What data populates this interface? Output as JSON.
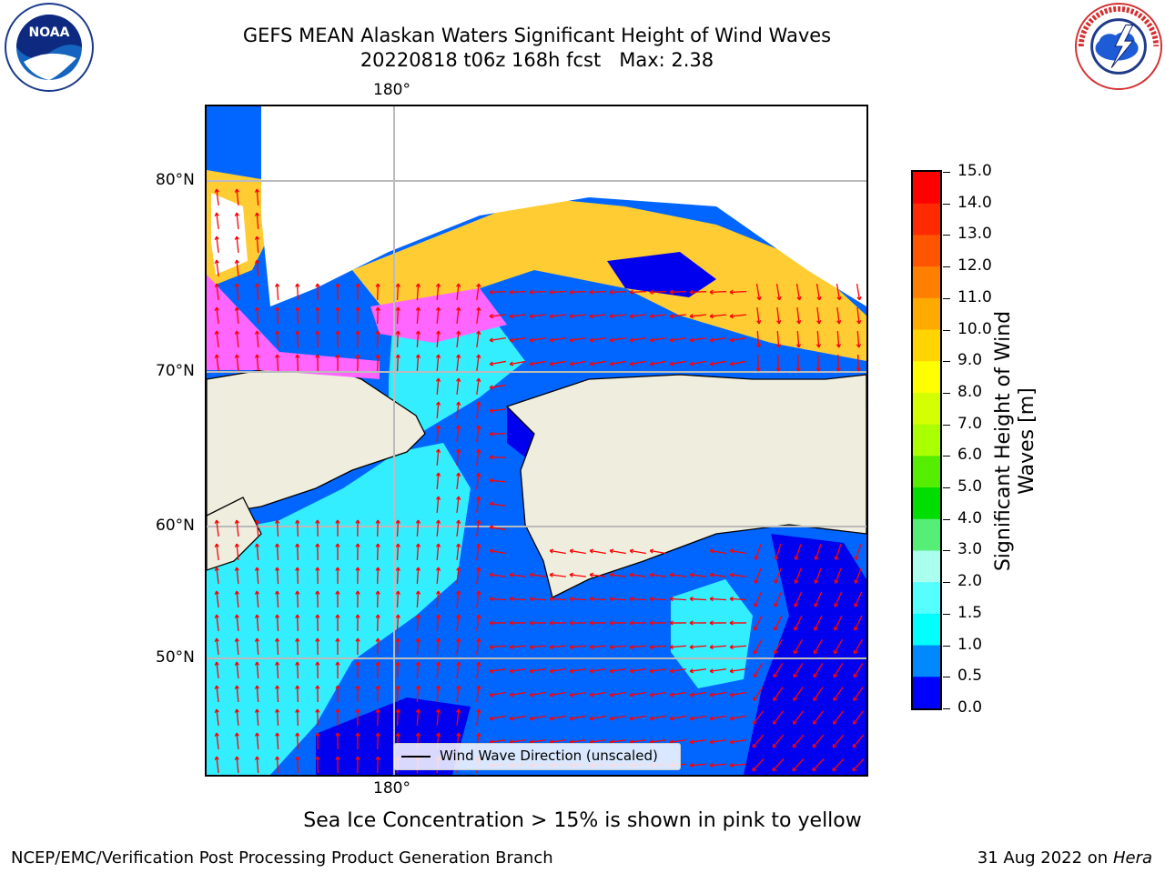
{
  "title": {
    "line1": "GEFS MEAN Alaskan Waters Significant Height of Wind Waves",
    "line2": "20220818 t06z 168h fcst   Max: 2.38"
  },
  "logos": {
    "left": {
      "icon": "noaa-logo",
      "text": "NOAA",
      "ring_text": "NATIONAL OCEANIC AND ATMOSPHERIC ADMINISTRATION · U.S. DEPARTMENT OF COMMERCE"
    },
    "right": {
      "icon": "nws-logo",
      "ring_text": "NATIONAL WEATHER SERVICE"
    }
  },
  "map": {
    "lon_label_top": "180°",
    "lon_label_bottom": "180°",
    "lat_labels": [
      "80°N",
      "70°N",
      "60°N",
      "50°N"
    ],
    "legend_label": "Wind Wave Direction (unscaled)",
    "colors": {
      "land": "#efedde",
      "sea_ice": [
        "#ff40ff",
        "#ffcc33"
      ],
      "arrow": "#ff0000",
      "grid": "#bbbbbb"
    }
  },
  "colorbar": {
    "title": "Significant Height of Wind Waves [m]",
    "ticks": [
      "15.0",
      "14.0",
      "13.0",
      "12.0",
      "11.0",
      "10.0",
      "9.0",
      "8.0",
      "7.0",
      "6.0",
      "5.0",
      "4.0",
      "3.0",
      "2.0",
      "1.5",
      "1.0",
      "0.5",
      "0.0"
    ],
    "colors_top_to_bottom": [
      "#ff0000",
      "#ff2a00",
      "#ff5500",
      "#ff7f00",
      "#ffaa00",
      "#ffd400",
      "#ffff00",
      "#d4ff00",
      "#aaff00",
      "#55ee00",
      "#00dd00",
      "#55ee77",
      "#aaffee",
      "#55ffff",
      "#00ffff",
      "#0088ff",
      "#0000ff"
    ]
  },
  "footer": {
    "note": "Sea Ice Concentration > 15% is shown in pink to yellow",
    "left": "NCEP/EMC/Verification Post Processing Product Generation Branch",
    "right_date": "31 Aug 2022 on",
    "right_host": "Hera"
  }
}
